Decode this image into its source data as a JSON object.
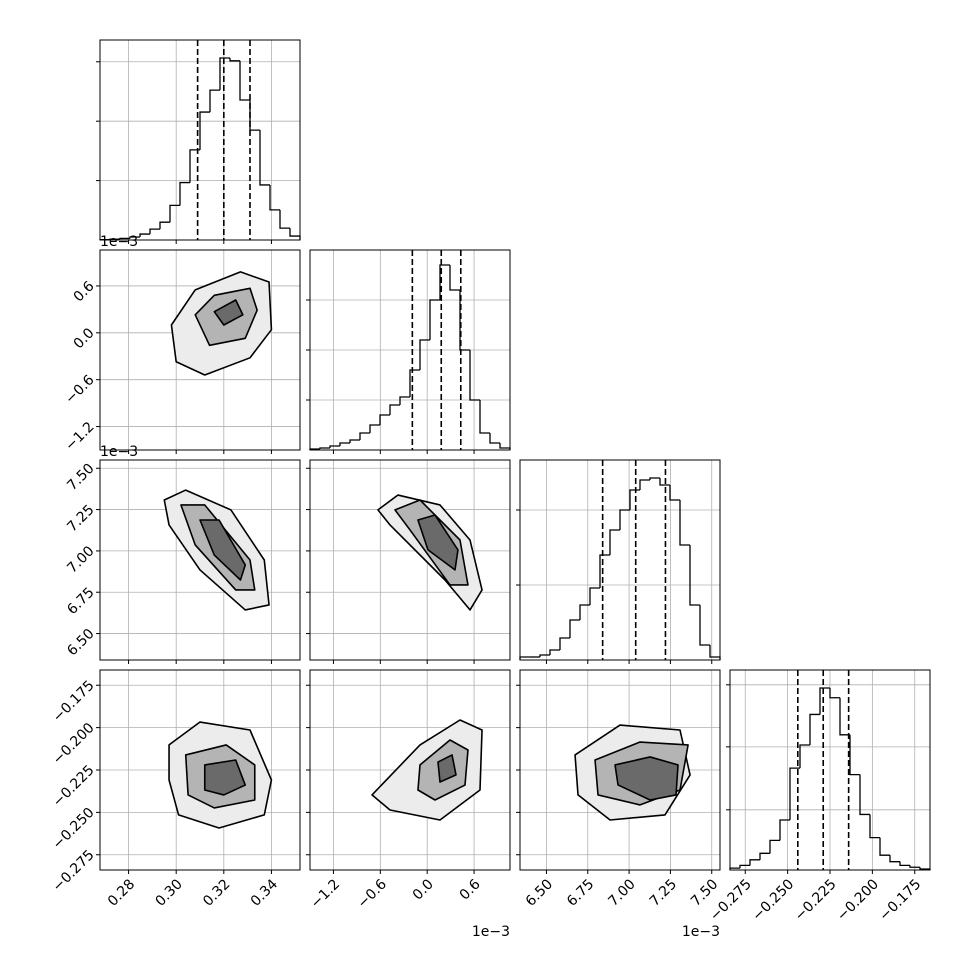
{
  "chart_data": {
    "type": "corner",
    "grid": true,
    "color": "#000000",
    "level_colors": [
      "#ececec",
      "#b4b4b4",
      "#6a6a6a"
    ],
    "parameters": [
      {
        "lim": [
          0.268,
          0.352
        ],
        "ticks": [
          0.28,
          {
            "value": 0.3,
            "label": "0.30"
          },
          0.32,
          0.34
        ]
      },
      {
        "lim": [
          -1.5,
          1.06
        ],
        "ticks": [
          {
            "value": -1.2,
            "label": "−1.2"
          },
          {
            "value": -0.6,
            "label": "−0.6"
          },
          {
            "value": 0,
            "label": "0.0"
          },
          0.6
        ],
        "offset": "1e−3"
      },
      {
        "lim": [
          6.34,
          7.55
        ],
        "ticks": [
          {
            "value": 6.5,
            "label": "6.50"
          },
          6.75,
          {
            "value": 7,
            "label": "7.00"
          },
          7.25,
          {
            "value": 7.5,
            "label": "7.50"
          }
        ],
        "offset": "1e−3"
      },
      {
        "lim": [
          -0.284,
          -0.166
        ],
        "ticks": [
          {
            "value": -0.275,
            "label": "−0.275"
          },
          {
            "value": -0.25,
            "label": "−0.250"
          },
          {
            "value": -0.225,
            "label": "−0.225"
          },
          {
            "value": -0.2,
            "label": "−0.200"
          },
          {
            "value": -0.175,
            "label": "−0.175"
          }
        ]
      }
    ],
    "histograms": [
      {
        "bins": [
          0.268,
          0.2722,
          0.2764,
          0.2806,
          0.2848,
          0.289,
          0.2932,
          0.2974,
          0.3016,
          0.3058,
          0.31,
          0.3142,
          0.3184,
          0.3226,
          0.3268,
          0.331,
          0.3352,
          0.3394,
          0.3436,
          0.3478,
          0.352
        ],
        "counts": [
          2,
          4,
          8,
          15,
          30,
          55,
          90,
          175,
          290,
          455,
          646,
          757,
          919,
          905,
          707,
          555,
          278,
          152,
          60,
          20
        ],
        "ylim": [
          0,
          1010
        ],
        "yticks": [
          300,
          600,
          900
        ],
        "quantiles": [
          0.309,
          0.32,
          0.331
        ]
      },
      {
        "bins": [
          -1.5,
          -1.372,
          -1.244,
          -1.116,
          -0.988,
          -0.86,
          -0.732,
          -0.604,
          -0.476,
          -0.348,
          -0.22,
          -0.092,
          0.036,
          0.164,
          0.292,
          0.42,
          0.548,
          0.676,
          0.804,
          0.932,
          1.06
        ],
        "counts": [
          5,
          10,
          20,
          35,
          50,
          85,
          125,
          175,
          225,
          265,
          400,
          550,
          750,
          925,
          800,
          500,
          250,
          85,
          35,
          10
        ],
        "ylim": [
          0,
          1000
        ],
        "yticks": [
          250,
          500,
          750
        ],
        "quantiles": [
          -0.19,
          0.18,
          0.43
        ]
      },
      {
        "bins": [
          6.34,
          6.4005,
          6.461,
          6.5215,
          6.582,
          6.6425,
          6.703,
          6.7635,
          6.824,
          6.8845,
          6.945,
          7.0055,
          7.066,
          7.1265,
          7.187,
          7.2475,
          7.308,
          7.3685,
          7.429,
          7.4895,
          7.55
        ],
        "counts": [
          15,
          15,
          25,
          50,
          110,
          200,
          275,
          360,
          525,
          650,
          750,
          850,
          900,
          910,
          875,
          800,
          575,
          275,
          75,
          15
        ],
        "ylim": [
          0,
          1000
        ],
        "yticks": [
          375,
          750
        ],
        "quantiles": [
          6.84,
          7.04,
          7.22
        ]
      },
      {
        "bins": [
          -0.284,
          -0.2781,
          -0.2722,
          -0.2663,
          -0.2604,
          -0.2545,
          -0.2486,
          -0.2427,
          -0.2368,
          -0.2309,
          -0.225,
          -0.2191,
          -0.2132,
          -0.2073,
          -0.2014,
          -0.1955,
          -0.1896,
          -0.1837,
          -0.1778,
          -0.1719,
          -0.166
        ],
        "counts": [
          10,
          25,
          55,
          90,
          160,
          270,
          550,
          675,
          840,
          983,
          930,
          730,
          515,
          300,
          175,
          80,
          45,
          25,
          15,
          5
        ],
        "ylim": [
          0,
          1080
        ],
        "yticks": [
          325,
          665,
          1000
        ],
        "quantiles": [
          -0.244,
          -0.229,
          -0.214
        ]
      }
    ],
    "contours": [
      {
        "x_param": 0,
        "y_param": 1,
        "levels": [
          {
            "x": [
              0.298,
              0.308,
              0.327,
              0.339,
              0.34,
              0.331,
              0.312,
              0.3
            ],
            "y": [
              0.1,
              0.55,
              0.78,
              0.65,
              0.04,
              -0.32,
              -0.54,
              -0.37
            ]
          },
          {
            "x": [
              0.308,
              0.316,
              0.331,
              0.334,
              0.329,
              0.314
            ],
            "y": [
              0.23,
              0.48,
              0.57,
              0.29,
              -0.07,
              -0.16
            ]
          },
          {
            "x": [
              0.316,
              0.325,
              0.328,
              0.32
            ],
            "y": [
              0.27,
              0.42,
              0.23,
              0.1
            ]
          }
        ]
      },
      {
        "x_param": 0,
        "y_param": 2,
        "levels": [
          {
            "x": [
              0.295,
              0.304,
              0.323,
              0.337,
              0.339,
              0.329,
              0.31,
              0.297
            ],
            "y": [
              7.308,
              7.368,
              7.248,
              6.945,
              6.673,
              6.643,
              6.885,
              7.157
            ]
          },
          {
            "x": [
              0.302,
              0.312,
              0.331,
              0.333,
              0.325,
              0.308
            ],
            "y": [
              7.278,
              7.278,
              6.945,
              6.764,
              6.764,
              7.036
            ]
          },
          {
            "x": [
              0.31,
              0.318,
              0.329,
              0.327,
              0.316
            ],
            "y": [
              7.187,
              7.187,
              6.915,
              6.824,
              6.975
            ]
          }
        ]
      },
      {
        "x_param": 1,
        "y_param": 2,
        "levels": [
          {
            "x": [
              -0.63,
              -0.374,
              0.164,
              0.548,
              0.702,
              0.548,
              0.228,
              -0.476
            ],
            "y": [
              7.248,
              7.338,
              7.278,
              7.066,
              6.764,
              6.643,
              6.824,
              7.157
            ]
          },
          {
            "x": [
              -0.412,
              -0.092,
              0.42,
              0.522,
              0.292,
              -0.22
            ],
            "y": [
              7.248,
              7.308,
              7.066,
              6.794,
              6.794,
              7.127
            ]
          },
          {
            "x": [
              -0.118,
              0.1,
              0.394,
              0.356,
              0.01
            ],
            "y": [
              7.187,
              7.217,
              7.006,
              6.885,
              7.006
            ]
          }
        ]
      },
      {
        "x_param": 0,
        "y_param": 3,
        "levels": [
          {
            "x": [
              0.297,
              0.31,
              0.331,
              0.34,
              0.337,
              0.318,
              0.301,
              0.297
            ],
            "y": [
              -0.2102,
              -0.1967,
              -0.2014,
              -0.2309,
              -0.2515,
              -0.2592,
              -0.2515,
              -0.2309
            ]
          },
          {
            "x": [
              0.304,
              0.321,
              0.333,
              0.333,
              0.316,
              0.305
            ],
            "y": [
              -0.2161,
              -0.2102,
              -0.222,
              -0.2427,
              -0.2474,
              -0.2397
            ]
          },
          {
            "x": [
              0.312,
              0.325,
              0.329,
              0.32,
              0.312
            ],
            "y": [
              -0.222,
              -0.2191,
              -0.2339,
              -0.2397,
              -0.2368
            ]
          }
        ]
      },
      {
        "x_param": 1,
        "y_param": 3,
        "levels": [
          {
            "x": [
              -0.706,
              -0.092,
              0.42,
              0.702,
              0.676,
              0.164,
              -0.476
            ],
            "y": [
              -0.2397,
              -0.2102,
              -0.1955,
              -0.2014,
              -0.2368,
              -0.2545,
              -0.2486
            ]
          },
          {
            "x": [
              -0.092,
              0.292,
              0.522,
              0.484,
              0.1,
              -0.118
            ],
            "y": [
              -0.222,
              -0.2073,
              -0.2132,
              -0.2339,
              -0.2427,
              -0.2368
            ]
          },
          {
            "x": [
              0.138,
              0.318,
              0.369,
              0.164
            ],
            "y": [
              -0.2203,
              -0.2161,
              -0.2279,
              -0.2321
            ]
          }
        ]
      },
      {
        "x_param": 2,
        "y_param": 3,
        "levels": [
          {
            "x": [
              6.673,
              6.945,
              7.308,
              7.369,
              7.217,
              6.885,
              6.691
            ],
            "y": [
              -0.2161,
              -0.1985,
              -0.2014,
              -0.2279,
              -0.2515,
              -0.2545,
              -0.2397
            ]
          },
          {
            "x": [
              6.794,
              7.066,
              7.357,
              7.308,
              7.066,
              6.812
            ],
            "y": [
              -0.2191,
              -0.2085,
              -0.2102,
              -0.2368,
              -0.2456,
              -0.2397
            ]
          },
          {
            "x": [
              6.915,
              7.127,
              7.296,
              7.284,
              7.127,
              6.933
            ],
            "y": [
              -0.222,
              -0.2173,
              -0.222,
              -0.2397,
              -0.2427,
              -0.2338
            ]
          }
        ]
      }
    ]
  }
}
